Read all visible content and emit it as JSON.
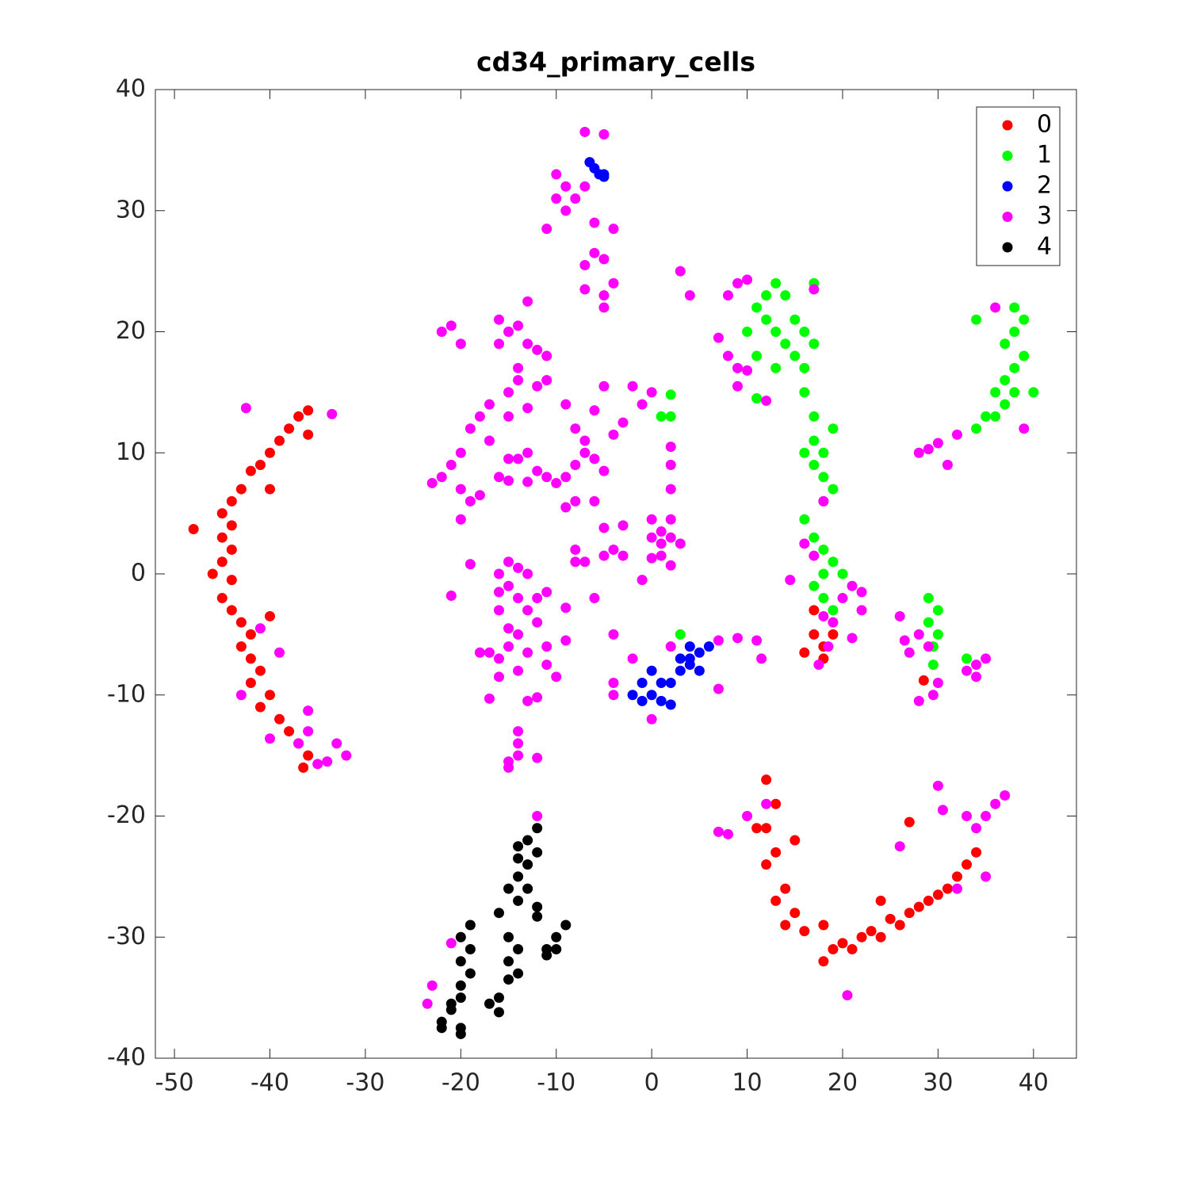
{
  "chart_data": {
    "type": "scatter",
    "title": "cd34_primary_cells",
    "xlim": [
      -52,
      44.5
    ],
    "ylim": [
      -40,
      40
    ],
    "xticks": [
      -50,
      -40,
      -30,
      -20,
      -10,
      0,
      10,
      20,
      30,
      40
    ],
    "yticks": [
      -40,
      -30,
      -20,
      -10,
      0,
      10,
      20,
      30,
      40
    ],
    "legend": "upper right",
    "series": [
      {
        "name": "0",
        "color": "#ff0000",
        "x": [
          -37,
          -38,
          -36,
          -39,
          -40,
          -41,
          -42,
          -43,
          -44,
          -45,
          -44,
          -45,
          -44,
          -45,
          -46,
          -44,
          -45,
          -44,
          -43,
          -42,
          -43,
          -42,
          -41,
          -42,
          -40,
          -41,
          -39,
          -38,
          -37,
          -36,
          -36.5,
          -48,
          -36,
          -40,
          -40,
          12,
          13,
          12,
          13,
          12,
          14,
          13,
          15,
          14,
          16,
          18,
          19,
          18,
          20,
          21,
          22,
          23,
          24,
          25,
          26,
          27,
          28,
          29,
          30,
          31,
          32,
          33,
          34,
          27,
          24,
          11,
          15,
          17,
          17,
          18,
          19,
          16,
          18,
          28.5
        ],
        "values": [
          13,
          12,
          11.5,
          11,
          10,
          9,
          8.5,
          7,
          6,
          5,
          4,
          3,
          2,
          1,
          0,
          -0.5,
          -2,
          -3,
          -4,
          -5,
          -6,
          -7,
          -8,
          -9,
          -10,
          -11,
          -12,
          -13,
          -14,
          -15,
          -16,
          3.7,
          13.5,
          7,
          -3.5,
          -17,
          -19,
          -21,
          -23,
          -24,
          -26,
          -27,
          -28,
          -29,
          -29.5,
          -29,
          -31,
          -32,
          -30.5,
          -31,
          -30,
          -29.5,
          -30,
          -28.5,
          -29,
          -28,
          -27.5,
          -27,
          -26.5,
          -26,
          -25,
          -24,
          -23,
          -20.5,
          -27,
          -21,
          -22,
          -3,
          -5,
          -6,
          -5,
          -6.5,
          -7,
          -8.8
        ]
      },
      {
        "name": "1",
        "color": "#00ff00",
        "x": [
          11,
          12,
          13,
          14,
          12,
          13,
          14,
          15,
          16,
          10,
          11,
          13,
          15,
          16,
          17,
          17,
          9,
          11,
          16,
          17,
          17,
          18,
          17,
          18,
          19,
          18,
          16,
          19,
          16,
          17,
          18,
          19,
          18,
          20,
          17,
          18,
          19,
          36,
          37,
          38,
          39,
          38,
          39,
          38,
          37,
          35,
          34,
          36,
          38,
          40,
          37,
          34,
          1,
          2,
          2,
          29,
          30,
          29,
          30,
          29.5,
          29.5,
          33,
          3
        ],
        "values": [
          22,
          23,
          24,
          23,
          21,
          20,
          19,
          18,
          17,
          20,
          18,
          17,
          21,
          20,
          19,
          24,
          17,
          14.5,
          15,
          13,
          11,
          10,
          9,
          8,
          7,
          6,
          10,
          12,
          4.5,
          3,
          2,
          1,
          0,
          0,
          -1,
          -2,
          -3,
          15,
          16,
          17,
          18,
          20,
          21,
          22,
          14,
          13,
          12,
          13,
          15,
          15,
          19,
          21,
          13,
          14.8,
          13,
          -2,
          -3,
          -4,
          -5,
          -6,
          -7.5,
          -7,
          -5
        ]
      },
      {
        "name": "2",
        "color": "#0000ff",
        "x": [
          -2,
          -1,
          0,
          1,
          0,
          1,
          2,
          3,
          4,
          5,
          4,
          3,
          5,
          6,
          -1,
          2,
          4,
          -6.5,
          -6,
          -5.5,
          -5,
          -5
        ],
        "values": [
          -10,
          -9,
          -8,
          -9,
          -10,
          -10.5,
          -9,
          -8,
          -7,
          -6.5,
          -6,
          -7,
          -8,
          -6,
          -10.5,
          -10.8,
          -7.5,
          34,
          33.5,
          33,
          33,
          32.8
        ]
      },
      {
        "name": "3",
        "color": "#ff00ff",
        "x": [
          -10,
          -9,
          -10,
          -9,
          -8,
          -7,
          -11,
          -7,
          -5,
          -6,
          -4,
          -6,
          -7,
          -5,
          -7,
          -5,
          -4,
          -5,
          3,
          4,
          -22,
          -21,
          -20,
          -16,
          -15,
          -14,
          -13,
          -16,
          -13,
          -12,
          -11,
          -14,
          -15,
          -17,
          -18,
          -15,
          -13,
          -12,
          -11,
          -14,
          -19,
          -17,
          -20,
          -21,
          -22,
          -23,
          -20,
          -19,
          -18,
          -16,
          -15,
          -14,
          -13,
          -12,
          -11,
          -10,
          -9,
          -8,
          -7,
          -6,
          -5,
          -9,
          -8,
          -6,
          -7,
          -8,
          -9,
          -6,
          -5,
          -4,
          -3,
          -2,
          -1,
          0,
          -15,
          -13,
          -20,
          -5,
          -3,
          -4,
          -5,
          -3,
          -8,
          -8,
          -7,
          0,
          1,
          1,
          2,
          0,
          2,
          3,
          1,
          2,
          0,
          2,
          2,
          2,
          -1,
          -19,
          -16,
          -15,
          -14,
          -13,
          -15,
          -14,
          -13,
          -12,
          -11,
          -16,
          -16,
          -21,
          -9,
          -9,
          -12,
          -11,
          -14,
          -15,
          -16,
          -17,
          -18,
          -15,
          -13,
          -11,
          -14,
          -16,
          -10,
          -17,
          -13,
          -12,
          -14,
          -14,
          -14,
          -15,
          -12,
          -15,
          -6,
          -4,
          -4,
          -4,
          -2,
          0,
          2,
          7,
          7,
          9,
          11,
          11.5,
          9,
          10,
          7,
          8,
          9,
          10,
          9,
          12,
          8,
          17,
          18,
          14.5,
          16,
          17,
          18,
          19,
          17.5,
          18.5,
          21,
          20,
          22,
          22,
          21,
          26,
          26.5,
          27,
          28,
          28,
          29.5,
          30,
          29,
          33,
          34,
          35,
          34,
          28,
          29,
          30,
          31,
          32,
          36,
          39,
          12,
          10,
          8,
          7,
          26,
          30,
          30.5,
          33,
          34,
          35,
          36,
          37,
          32,
          35,
          20.5,
          -23.5,
          -23,
          -21,
          -12,
          -42.5,
          -33.5,
          -41,
          -39,
          -43,
          -40,
          -36,
          -37,
          -36,
          -33,
          -32,
          -34,
          -35
        ],
        "values": [
          33,
          32,
          31,
          30,
          31,
          32,
          28.5,
          36.5,
          36.3,
          29,
          28.5,
          26.5,
          25.5,
          26,
          23.5,
          23,
          24,
          22,
          25,
          23,
          20,
          20.5,
          19,
          21,
          20,
          20.5,
          22.5,
          19,
          19,
          18.5,
          18,
          17,
          15,
          14,
          13,
          13,
          13.7,
          15.5,
          16,
          16,
          12,
          11,
          10,
          9,
          8,
          7.5,
          7,
          6,
          6.5,
          8,
          9.5,
          9.5,
          10,
          8.5,
          8,
          7.5,
          8,
          9,
          10,
          9.5,
          8.5,
          5.5,
          6,
          6,
          11,
          12,
          14,
          13.5,
          15.5,
          11.5,
          12.5,
          15.5,
          14,
          15,
          7.7,
          7.6,
          4.5,
          3.8,
          4,
          2,
          1.5,
          1.5,
          2,
          1,
          1,
          3,
          2.5,
          3.5,
          3,
          4.5,
          4.5,
          2.5,
          1.5,
          0.7,
          1.3,
          7,
          9,
          10.5,
          -0.5,
          0.8,
          0,
          1,
          0.5,
          0,
          -1,
          -2,
          -3,
          -2,
          -1.5,
          -1.5,
          -3,
          -1.8,
          -2.8,
          -5.5,
          -4,
          -6,
          -5,
          -4.5,
          -7,
          -6.5,
          -6.5,
          -6,
          -6.5,
          -7.5,
          -8,
          -8.5,
          -8.5,
          -10.3,
          -10.5,
          -10.2,
          -13,
          -14,
          -15,
          -15.5,
          -15.2,
          -16,
          -2,
          -5,
          -9,
          -10,
          -7,
          -12,
          -6,
          -5.5,
          -9.5,
          -5.3,
          -5.5,
          -7,
          24,
          24.3,
          19.5,
          18,
          17,
          16.8,
          15.5,
          14.3,
          23,
          23.5,
          6,
          -0.5,
          2.5,
          1.5,
          -3.5,
          -4,
          -7.5,
          -6,
          -1,
          -2,
          -1.5,
          -3,
          -5.3,
          -3.5,
          -5.5,
          -6.5,
          -5,
          -10.5,
          -10,
          -9,
          -6,
          -8,
          -7.5,
          -7,
          -8.5,
          10,
          10.3,
          10.8,
          9,
          11.5,
          22,
          12,
          -19,
          -20,
          -21.5,
          -21.3,
          -22.5,
          -17.5,
          -19.5,
          -20,
          -21,
          -20,
          -19,
          -18.3,
          -26,
          -25,
          -34.8,
          -35.5,
          -34,
          -30.5,
          -20,
          13.7,
          13.2,
          -4.5,
          -6.5,
          -10,
          -13.6,
          -11.3,
          -14,
          -13,
          -14,
          -15,
          -15.5,
          -15.7
        ]
      },
      {
        "name": "4",
        "color": "#000000",
        "x": [
          -12,
          -13,
          -12,
          -14,
          -13,
          -14,
          -13,
          -15,
          -14,
          -12,
          -12,
          -16,
          -15,
          -14,
          -15,
          -14,
          -15,
          -16,
          -17,
          -16,
          -19,
          -20,
          -19,
          -20,
          -19,
          -20,
          -20,
          -21,
          -21,
          -22,
          -20,
          -20,
          -22,
          -9,
          -10,
          -10,
          -11,
          -11,
          -14
        ],
        "values": [
          -21,
          -22,
          -23,
          -23.5,
          -24,
          -25,
          -26,
          -26,
          -27,
          -27.5,
          -28.3,
          -28,
          -30,
          -31,
          -32,
          -33,
          -33.5,
          -35,
          -35.5,
          -36.2,
          -29,
          -30,
          -31,
          -32,
          -33,
          -34,
          -35,
          -35.5,
          -36,
          -37,
          -37.5,
          -38,
          -37.5,
          -29,
          -30,
          -31,
          -31.5,
          -31,
          -22.5
        ]
      }
    ]
  }
}
